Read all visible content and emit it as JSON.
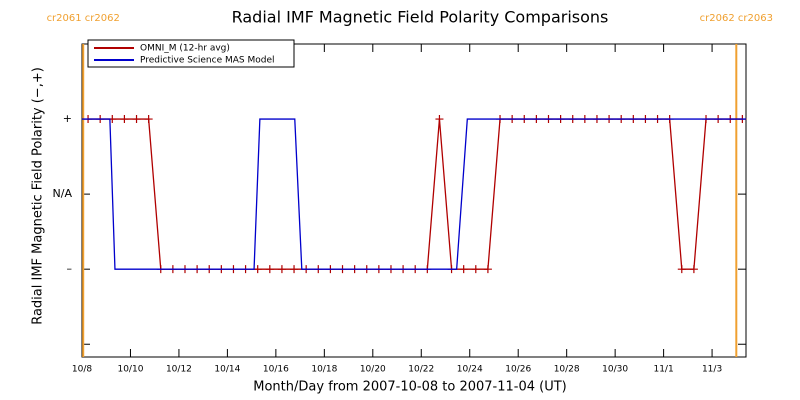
{
  "chart_data": {
    "type": "line",
    "title": "Radial IMF Magnetic Field Polarity Comparisons",
    "xlabel": "Month/Day from 2007-10-08 to 2007-11-04 (UT)",
    "ylabel": "Radial IMF Magnetic Field Polarity (−,+)",
    "xlim": [
      0,
      27.4
    ],
    "ylim": [
      -2.17,
      2
    ],
    "xticks": [
      {
        "value": 0,
        "label": "10/8"
      },
      {
        "value": 2,
        "label": "10/10"
      },
      {
        "value": 4,
        "label": "10/12"
      },
      {
        "value": 6,
        "label": "10/14"
      },
      {
        "value": 8,
        "label": "10/16"
      },
      {
        "value": 10,
        "label": "10/18"
      },
      {
        "value": 12,
        "label": "10/20"
      },
      {
        "value": 14,
        "label": "10/22"
      },
      {
        "value": 16,
        "label": "10/24"
      },
      {
        "value": 18,
        "label": "10/26"
      },
      {
        "value": 20,
        "label": "10/28"
      },
      {
        "value": 22,
        "label": "10/30"
      },
      {
        "value": 24,
        "label": "11/1"
      },
      {
        "value": 26,
        "label": "11/3"
      }
    ],
    "yticks": [
      {
        "value": 1,
        "label": "+"
      },
      {
        "value": 0,
        "label": "N/A"
      },
      {
        "value": -1,
        "label": "–"
      }
    ],
    "yminor_ticks": [
      -2
    ],
    "annotations": [
      {
        "text": "cr2061 cr2062",
        "x": 0.05,
        "color": "#f0a030"
      },
      {
        "text": "cr2062 cr2063",
        "x": 27.0,
        "color": "#f0a030"
      }
    ],
    "legend": "upper left",
    "series": [
      {
        "name": "OMNI_M (12-hr avg)",
        "color": "#b00000",
        "marker": "+",
        "x": [
          0.25,
          0.75,
          1.25,
          1.75,
          2.25,
          2.75,
          3.25,
          3.75,
          4.25,
          4.75,
          5.25,
          5.75,
          6.25,
          6.75,
          7.25,
          7.75,
          8.25,
          8.75,
          9.25,
          9.75,
          10.25,
          10.75,
          11.25,
          11.75,
          12.25,
          12.75,
          13.25,
          13.75,
          14.25,
          14.75,
          15.25,
          15.75,
          16.25,
          16.75,
          17.25,
          17.75,
          18.25,
          18.75,
          19.25,
          19.75,
          20.25,
          20.75,
          21.25,
          21.75,
          22.25,
          22.75,
          23.25,
          23.75,
          24.25,
          24.75,
          25.25,
          25.75,
          26.25,
          26.75,
          27.25
        ],
        "values": [
          1,
          1,
          1,
          1,
          1,
          1,
          -1,
          -1,
          -1,
          -1,
          -1,
          -1,
          -1,
          -1,
          -1,
          -1,
          -1,
          -1,
          -1,
          -1,
          -1,
          -1,
          -1,
          -1,
          -1,
          -1,
          -1,
          -1,
          -1,
          1,
          -1,
          -1,
          -1,
          -1,
          1,
          1,
          1,
          1,
          1,
          1,
          1,
          1,
          1,
          1,
          1,
          1,
          1,
          1,
          1,
          -1,
          -1,
          1,
          1,
          1,
          1
        ]
      },
      {
        "name": "Predictive Science MAS Model",
        "color": "#0000cc",
        "x": [
          0,
          1.15,
          1.36,
          7.1,
          7.34,
          8.78,
          9.07,
          15.46,
          15.9,
          27.4
        ],
        "values": [
          1,
          1,
          -1,
          -1,
          1,
          1,
          -1,
          -1,
          1,
          1
        ]
      }
    ]
  }
}
